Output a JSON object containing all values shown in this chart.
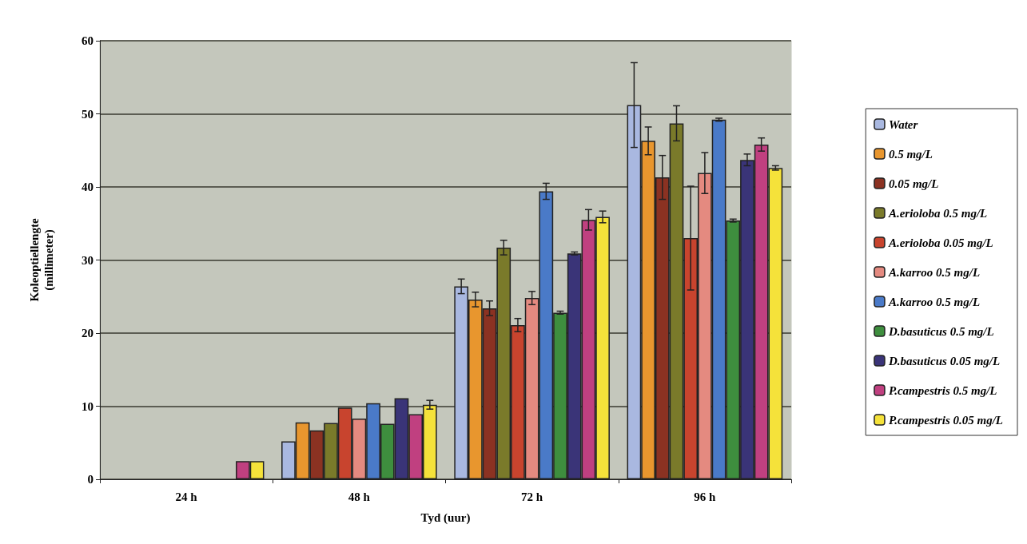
{
  "chart_data": {
    "type": "bar",
    "xlabel": "Tyd (uur)",
    "ylabel": "Koleoptiellengte\n(millimeter)",
    "categories": [
      "24 h",
      "48 h",
      "72 h",
      "96 h"
    ],
    "ylim": [
      0,
      60
    ],
    "yticks": [
      0,
      10,
      20,
      30,
      40,
      50,
      60
    ],
    "grid": "y",
    "legend": "right",
    "series": [
      {
        "name": "Water",
        "color": "#a9b8e0",
        "values": [
          null,
          5.2,
          26.4,
          51.2
        ],
        "errors": [
          null,
          null,
          1,
          5.8
        ]
      },
      {
        "name": "0.5 mg/L",
        "color": "#e8962e",
        "values": [
          null,
          7.8,
          24.6,
          46.3
        ],
        "errors": [
          null,
          null,
          1,
          1.9
        ]
      },
      {
        "name": "0.05 mg/L",
        "color": "#8b3222",
        "values": [
          null,
          6.7,
          23.4,
          41.3
        ],
        "errors": [
          null,
          null,
          1,
          3
        ]
      },
      {
        "name": "A.erioloba 0.5 mg/L",
        "color": "#7a7a2a",
        "values": [
          null,
          7.7,
          31.7,
          48.7
        ],
        "errors": [
          null,
          null,
          1,
          2.4
        ]
      },
      {
        "name": "A.erioloba 0.05 mg/L",
        "color": "#c8442e",
        "values": [
          null,
          9.8,
          21.1,
          33
        ],
        "errors": [
          null,
          null,
          0.9,
          7.1
        ]
      },
      {
        "name": "A.karroo 0.5 mg/L",
        "color": "#e48a80",
        "values": [
          null,
          8.3,
          24.8,
          41.9
        ],
        "errors": [
          null,
          null,
          0.9,
          2.8
        ]
      },
      {
        "name": "A.karroo 0.5 mg/L",
        "color": "#4a7ac8",
        "values": [
          null,
          10.4,
          39.4,
          49.2
        ],
        "errors": [
          null,
          null,
          1.1,
          0.2
        ]
      },
      {
        "name": "D.basuticus 0.5 mg/L",
        "color": "#3e8e3e",
        "values": [
          null,
          7.6,
          22.8,
          35.4
        ],
        "errors": [
          null,
          null,
          0.2,
          0.2
        ]
      },
      {
        "name": "D.basuticus 0.05 mg/L",
        "color": "#3a3478",
        "values": [
          null,
          11.1,
          30.9,
          43.7
        ],
        "errors": [
          null,
          null,
          0.2,
          0.8
        ]
      },
      {
        "name": "P.campestris 0.5 mg/L",
        "color": "#c04080",
        "values": [
          2.5,
          8.9,
          35.5,
          45.8
        ],
        "errors": [
          null,
          null,
          1.4,
          0.9
        ]
      },
      {
        "name": "P.campestris 0.05 mg/L",
        "color": "#f5e23a",
        "values": [
          2.5,
          10.2,
          35.9,
          42.6
        ],
        "errors": [
          null,
          0.6,
          0.8,
          0.3
        ]
      }
    ]
  }
}
